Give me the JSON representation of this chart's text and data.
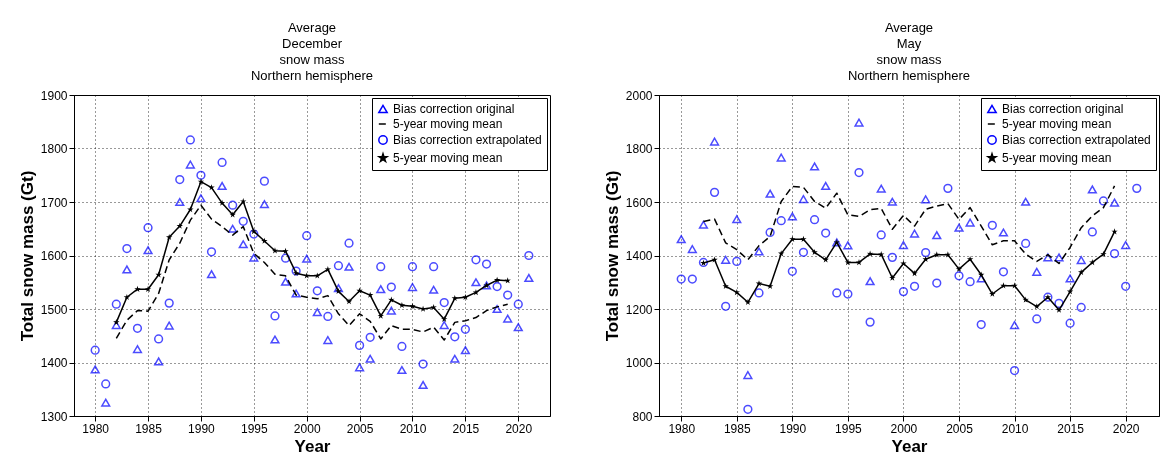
{
  "chart_data": [
    {
      "type": "scatter",
      "title": "Average\nDecember\nsnow mass\nNorthern hemisphere",
      "xlabel": "Year",
      "ylabel": "Total snow mass (Gt)",
      "xlim": [
        1978,
        2023
      ],
      "ylim": [
        1300,
        1900
      ],
      "xticks": [
        1980,
        1985,
        1990,
        1995,
        2000,
        2005,
        2010,
        2015,
        2020
      ],
      "yticks": [
        1300,
        1400,
        1500,
        1600,
        1700,
        1800,
        1900
      ],
      "grid": true,
      "legend": "top right",
      "x": [
        1980,
        1981,
        1982,
        1983,
        1984,
        1985,
        1986,
        1987,
        1988,
        1989,
        1990,
        1991,
        1992,
        1993,
        1994,
        1995,
        1996,
        1997,
        1998,
        1999,
        2000,
        2001,
        2002,
        2003,
        2004,
        2005,
        2006,
        2007,
        2008,
        2009,
        2010,
        2011,
        2012,
        2013,
        2014,
        2015,
        2016,
        2017,
        2018,
        2019,
        2020,
        2021
      ],
      "series": [
        {
          "name": "Bias correction original",
          "type": "scatter",
          "marker": "triangle",
          "color": "#0000ff",
          "values": [
            1387,
            1325,
            1470,
            1574,
            1425,
            1610,
            1402,
            1469,
            1700,
            1770,
            1707,
            1565,
            1730,
            1650,
            1621,
            1596,
            1696,
            1443,
            1551,
            1529,
            1594,
            1494,
            1442,
            1539,
            1579,
            1391,
            1407,
            1537,
            1497,
            1386,
            1541,
            1358,
            1536,
            1470,
            1407,
            1423,
            1550,
            1544,
            1500,
            1482,
            1466,
            1558
          ]
        },
        {
          "name": "5-year moving mean",
          "type": "line",
          "marker": "none",
          "line_style": "dashed",
          "color": "#000000",
          "x": [
            1982,
            1983,
            1984,
            1985,
            1986,
            1987,
            1988,
            1989,
            1990,
            1991,
            1992,
            1993,
            1994,
            1995,
            1996,
            1997,
            1998,
            1999,
            2000,
            2001,
            2002,
            2003,
            2004,
            2005,
            2006,
            2007,
            2008,
            2009,
            2010,
            2011,
            2012,
            2013,
            2014,
            2015,
            2016,
            2017,
            2018,
            2019
          ],
          "values": [
            1445,
            1479,
            1497,
            1496,
            1529,
            1592,
            1623,
            1666,
            1694,
            1668,
            1654,
            1638,
            1654,
            1604,
            1587,
            1565,
            1562,
            1526,
            1522,
            1519,
            1525,
            1491,
            1469,
            1491,
            1477,
            1444,
            1469,
            1462,
            1462,
            1457,
            1466,
            1442,
            1475,
            1478,
            1484,
            1497,
            1504,
            1509
          ]
        },
        {
          "name": "Bias correction extrapolated",
          "type": "scatter",
          "marker": "circle",
          "color": "#0000ff",
          "values": [
            1423,
            1360,
            1509,
            1613,
            1464,
            1652,
            1444,
            1511,
            1742,
            1816,
            1750,
            1607,
            1774,
            1694,
            1664,
            1640,
            1739,
            1487,
            1595,
            1571,
            1637,
            1534,
            1486,
            1581,
            1623,
            1432,
            1447,
            1579,
            1541,
            1430,
            1579,
            1397,
            1579,
            1512,
            1448,
            1462,
            1592,
            1584,
            1542,
            1526,
            1509,
            1600
          ]
        },
        {
          "name": "5-year moving mean",
          "type": "line",
          "marker": "star",
          "line_style": "solid",
          "color": "#000000",
          "x": [
            1982,
            1983,
            1984,
            1985,
            1986,
            1987,
            1988,
            1989,
            1990,
            1991,
            1992,
            1993,
            1994,
            1995,
            1996,
            1997,
            1998,
            1999,
            2000,
            2001,
            2002,
            2003,
            2004,
            2005,
            2006,
            2007,
            2008,
            2009,
            2010,
            2011,
            2012,
            2013,
            2014,
            2015,
            2016,
            2017,
            2018,
            2019
          ],
          "values": [
            1475,
            1522,
            1537,
            1537,
            1564,
            1634,
            1655,
            1686,
            1738,
            1727,
            1698,
            1676,
            1701,
            1645,
            1627,
            1609,
            1608,
            1567,
            1562,
            1562,
            1574,
            1533,
            1514,
            1534,
            1526,
            1487,
            1517,
            1507,
            1505,
            1500,
            1503,
            1481,
            1520,
            1522,
            1531,
            1544,
            1554,
            1553
          ]
        }
      ]
    },
    {
      "type": "scatter",
      "title": "Average\nMay\nsnow mass\nNorthern hemisphere",
      "xlabel": "Year",
      "ylabel": "Total snow mass (Gt)",
      "xlim": [
        1978,
        2023
      ],
      "ylim": [
        800,
        2000
      ],
      "xticks": [
        1980,
        1985,
        1990,
        1995,
        2000,
        2005,
        2010,
        2015,
        2020
      ],
      "yticks": [
        800,
        1000,
        1200,
        1400,
        1600,
        1800,
        2000
      ],
      "grid": true,
      "legend": "top right",
      "x": [
        1980,
        1981,
        1982,
        1983,
        1984,
        1985,
        1986,
        1987,
        1988,
        1989,
        1990,
        1991,
        1992,
        1993,
        1994,
        1995,
        1996,
        1997,
        1998,
        1999,
        2000,
        2001,
        2002,
        2003,
        2004,
        2005,
        2006,
        2007,
        2008,
        2009,
        2010,
        2011,
        2012,
        2013,
        2014,
        2015,
        2016,
        2017,
        2018,
        2019,
        2020,
        2021
      ],
      "series": [
        {
          "name": "Bias correction original",
          "type": "scatter",
          "marker": "triangle",
          "color": "#0000ff",
          "values": [
            1461,
            1424,
            1515,
            1826,
            1384,
            1536,
            953,
            1415,
            1631,
            1766,
            1546,
            1611,
            1733,
            1660,
            1449,
            1438,
            1897,
            1304,
            1650,
            1601,
            1439,
            1482,
            1610,
            1476,
            null,
            1504,
            1523,
            1314,
            null,
            1486,
            1140,
            1601,
            1339,
            1393,
            1393,
            1314,
            1383,
            1647,
            null,
            1598,
            1439,
            null
          ]
        },
        {
          "name": "5-year moving mean",
          "type": "line",
          "marker": "none",
          "line_style": "dashed",
          "color": "#000000",
          "x": [
            1982,
            1983,
            1984,
            1985,
            1986,
            1987,
            1988,
            1989,
            1990,
            1991,
            1992,
            1993,
            1994,
            1995,
            1996,
            1997,
            1998,
            1999,
            2000,
            2001,
            2002,
            2003,
            2004,
            2005,
            2006,
            2007,
            2008,
            2009,
            2010,
            2011,
            2012,
            2013,
            2014,
            2015,
            2016,
            2017,
            2018,
            2019
          ],
          "values": [
            1527,
            1536,
            1447,
            1422,
            1384,
            1437,
            1471,
            1602,
            1658,
            1655,
            1602,
            1577,
            1633,
            1552,
            1546,
            1571,
            1576,
            1498,
            1550,
            1510,
            1573,
            1585,
            1594,
            1535,
            1579,
            1510,
            1440,
            1455,
            1455,
            1405,
            1378,
            1403,
            1370,
            1430,
            1504,
            1548,
            1579,
            1660
          ]
        },
        {
          "name": "Bias correction extrapolated",
          "type": "scatter",
          "marker": "circle",
          "color": "#0000ff",
          "values": [
            1312,
            1312,
            1374,
            1636,
            1210,
            1378,
            825,
            1260,
            1486,
            1530,
            1341,
            1412,
            1534,
            1484,
            1260,
            1256,
            1710,
            1151,
            1477,
            1393,
            1265,
            1285,
            1411,
            1297,
            1651,
            1324,
            1302,
            1142,
            1513,
            1339,
            970,
            1445,
            1163,
            1244,
            1221,
            1147,
            1206,
            1488,
            1604,
            1407,
            1285,
            1651
          ]
        },
        {
          "name": "5-year moving mean",
          "type": "line",
          "marker": "star",
          "line_style": "solid",
          "color": "#000000",
          "x": [
            1982,
            1983,
            1984,
            1985,
            1986,
            1987,
            1988,
            1989,
            1990,
            1991,
            1992,
            1993,
            1994,
            1995,
            1996,
            1997,
            1998,
            1999,
            2000,
            2001,
            2002,
            2003,
            2004,
            2005,
            2006,
            2007,
            2008,
            2009,
            2010,
            2011,
            2012,
            2013,
            2014,
            2015,
            2016,
            2017,
            2018,
            2019
          ],
          "values": [
            1372,
            1384,
            1285,
            1262,
            1225,
            1295,
            1285,
            1407,
            1461,
            1461,
            1412,
            1384,
            1449,
            1374,
            1374,
            1406,
            1404,
            1316,
            1370,
            1333,
            1386,
            1403,
            1403,
            1349,
            1386,
            1328,
            1256,
            1287,
            1287,
            1234,
            1209,
            1244,
            1196,
            1265,
            1337,
            1374,
            1405,
            1489
          ]
        }
      ]
    }
  ]
}
